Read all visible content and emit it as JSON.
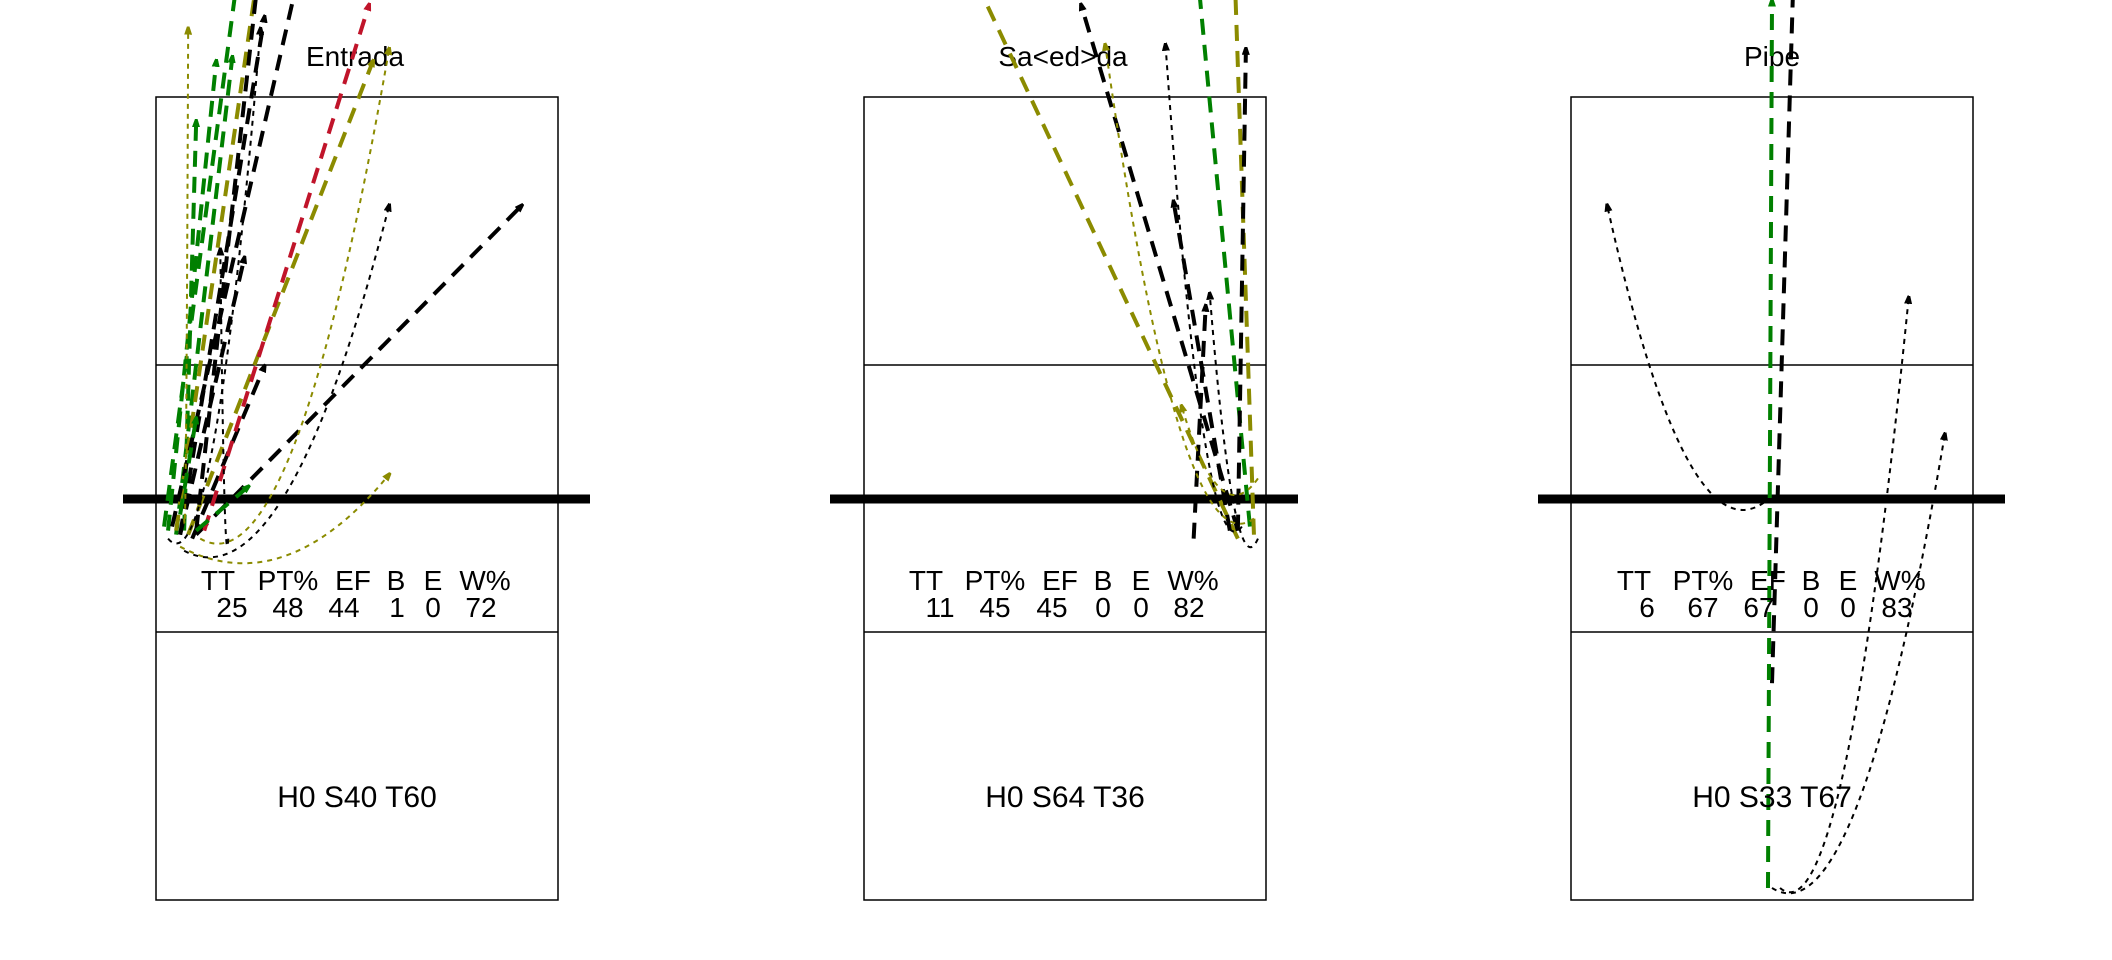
{
  "colors": {
    "black": "#000000",
    "green": "#008000",
    "olive": "#8b8b00",
    "red": "#c0142a"
  },
  "stat_headers": [
    "TT",
    "PT%",
    "EF",
    "B",
    "E",
    "W%"
  ],
  "panels": [
    {
      "title": "Entrada",
      "stats": [
        "25",
        "48",
        "44",
        "1",
        "0",
        "72"
      ],
      "zone": "H0 S40 T60",
      "arrows": [
        {
          "c": "green",
          "s": [
            0.02,
            1.07
          ],
          "e": [
            0.26,
            -0.73
          ]
        },
        {
          "c": "green",
          "s": [
            0.03,
            1.08
          ],
          "e": [
            0.15,
            -0.09
          ]
        },
        {
          "c": "green",
          "s": [
            0.05,
            1.09
          ],
          "e": [
            0.19,
            -0.1
          ]
        },
        {
          "c": "green",
          "s": [
            0.07,
            1.08
          ],
          "e": [
            0.1,
            0.06
          ]
        },
        {
          "c": "olive",
          "s": [
            0.05,
            1.08
          ],
          "e": [
            0.28,
            -0.49
          ]
        },
        {
          "c": "olive",
          "s": [
            0.08,
            1.09
          ],
          "e": [
            0.54,
            -0.09
          ]
        },
        {
          "c": "black",
          "s": [
            0.04,
            1.07
          ],
          "e": [
            0.4,
            -0.5
          ]
        },
        {
          "c": "black",
          "s": [
            0.06,
            1.09
          ],
          "e": [
            0.27,
            -0.2
          ]
        },
        {
          "c": "black",
          "s": [
            0.1,
            1.08
          ],
          "e": [
            0.28,
            -0.53
          ]
        },
        {
          "c": "black",
          "s": [
            0.06,
            1.09
          ],
          "e": [
            0.22,
            0.4
          ]
        },
        {
          "c": "black",
          "s": [
            0.09,
            1.1
          ],
          "e": [
            0.27,
            0.67
          ]
        },
        {
          "c": "black",
          "s": [
            0.1,
            1.09
          ],
          "e": [
            0.91,
            0.27
          ]
        },
        {
          "c": "red",
          "s": [
            0.12,
            1.08
          ],
          "e": [
            0.53,
            -0.23
          ]
        },
        {
          "c": "green",
          "s": [
            0.1,
            1.08
          ],
          "e": [
            0.23,
            0.97
          ]
        },
        {
          "c": "black",
          "s": [
            0.18,
            1.1
          ],
          "e": [
            0.16,
            0.38
          ],
          "curve": true
        },
        {
          "c": "black",
          "s": [
            0.03,
            1.1
          ],
          "e": [
            0.26,
            -0.17
          ],
          "curve": true
        },
        {
          "c": "olive",
          "s": [
            0.07,
            1.05
          ],
          "e": [
            0.08,
            -0.17
          ],
          "curve": true
        },
        {
          "c": "olive",
          "s": [
            0.06,
            1.12
          ],
          "e": [
            0.58,
            0.94
          ],
          "curve": true
        },
        {
          "c": "olive",
          "s": [
            0.11,
            1.1
          ],
          "e": [
            0.58,
            -0.12
          ],
          "curve": true
        },
        {
          "c": "black",
          "s": [
            0.07,
            1.13
          ],
          "e": [
            0.58,
            0.27
          ],
          "curve": true
        },
        {
          "c": "green",
          "s": [
            0.06,
            1.04
          ],
          "e": [
            0.1,
            0.8
          ]
        }
      ]
    },
    {
      "title": "Sa<ed>da",
      "stats": [
        "11",
        "45",
        "45",
        "0",
        "0",
        "82"
      ],
      "zone": "H0 S64 T36",
      "arrows": [
        {
          "c": "olive",
          "s": [
            0.93,
            1.1
          ],
          "e": [
            0.24,
            -0.37
          ]
        },
        {
          "c": "green",
          "s": [
            0.96,
            1.07
          ],
          "e": [
            0.79,
            -0.73
          ]
        },
        {
          "c": "olive",
          "s": [
            0.97,
            1.09
          ],
          "e": [
            0.92,
            -0.37
          ]
        },
        {
          "c": "black",
          "s": [
            0.93,
            1.08
          ],
          "e": [
            0.54,
            -0.23
          ]
        },
        {
          "c": "black",
          "s": [
            0.94,
            1.07
          ],
          "e": [
            0.75,
            -0.13
          ],
          "curve": true
        },
        {
          "c": "black",
          "s": [
            0.93,
            1.08
          ],
          "e": [
            0.95,
            -0.12
          ]
        },
        {
          "c": "black",
          "s": [
            0.82,
            1.1
          ],
          "e": [
            0.85,
            0.52
          ]
        },
        {
          "c": "black",
          "s": [
            0.91,
            1.08
          ],
          "e": [
            0.77,
            0.26
          ]
        },
        {
          "c": "olive",
          "s": [
            0.97,
            1.05
          ],
          "e": [
            0.6,
            -0.13
          ],
          "curve": true
        },
        {
          "c": "olive",
          "s": [
            0.98,
            0.95
          ],
          "e": [
            0.79,
            0.77
          ],
          "curve": true
        },
        {
          "c": "black",
          "s": [
            0.98,
            1.1
          ],
          "e": [
            0.86,
            0.49
          ],
          "curve": true
        }
      ]
    },
    {
      "title": "Pipe",
      "stats": [
        "6",
        "67",
        "67",
        "0",
        "0",
        "83"
      ],
      "zone": "H0 S33 T67",
      "arrows": [
        {
          "c": "black",
          "s": [
            0.5,
            1.46
          ],
          "e": [
            0.57,
            -0.85
          ]
        },
        {
          "c": "green",
          "s": [
            0.49,
            1.97
          ],
          "e": [
            0.5,
            -0.24
          ]
        },
        {
          "c": "black",
          "s": [
            0.48,
            1.01
          ],
          "e": [
            0.09,
            0.27
          ],
          "curve": true
        },
        {
          "c": "black",
          "s": [
            0.52,
            1.97
          ],
          "e": [
            0.84,
            0.5
          ],
          "curve": true
        },
        {
          "c": "black",
          "s": [
            0.5,
            1.97
          ],
          "e": [
            0.93,
            0.84
          ],
          "curve": true
        }
      ]
    }
  ]
}
